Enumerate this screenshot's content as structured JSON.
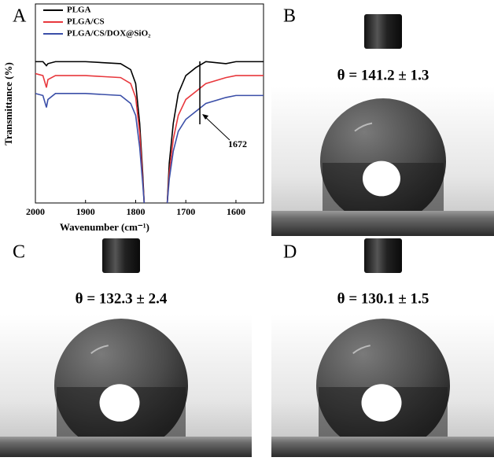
{
  "chart_data": {
    "type": "line",
    "x_label": "Wavenumber (cm⁻¹)",
    "y_label": "Transmittance (%)",
    "xlim": [
      2000,
      1545
    ],
    "xticks": [
      2000,
      1900,
      1800,
      1700,
      1600
    ],
    "ylim": [
      0,
      100
    ],
    "annotation": 1672,
    "x": [
      2000,
      1985,
      1978,
      1975,
      1960,
      1900,
      1830,
      1810,
      1800,
      1792,
      1786,
      1783,
      1760,
      1737,
      1733,
      1725,
      1715,
      1700,
      1680,
      1660,
      1620,
      1600,
      1545
    ],
    "series": [
      {
        "name": "PLGA",
        "color": "#000000",
        "values": [
          71,
          71,
          69,
          70,
          71,
          71,
          70,
          67,
          60,
          40,
          15,
          0,
          null,
          0,
          20,
          40,
          55,
          64,
          68,
          71,
          70,
          71,
          71
        ]
      },
      {
        "name": "PLGA/CS",
        "color": "#e8383d",
        "values": [
          65,
          64,
          58,
          62,
          64,
          64,
          63,
          60,
          53,
          35,
          12,
          0,
          null,
          0,
          15,
          32,
          44,
          52,
          56,
          60,
          63,
          64,
          64
        ]
      },
      {
        "name": "PLGA/CS/DOX@SiO₂",
        "color": "#3b4fa8",
        "values": [
          55,
          54,
          48,
          52,
          55,
          55,
          54,
          50,
          44,
          28,
          10,
          0,
          null,
          0,
          12,
          26,
          36,
          42,
          46,
          50,
          53,
          54,
          54
        ]
      }
    ]
  },
  "panels": [
    {
      "label": "A"
    },
    {
      "label": "B",
      "text": "θ = 141.2 ± 1.3"
    },
    {
      "label": "C",
      "text": "θ = 132.3 ± 2.4"
    },
    {
      "label": "D",
      "text": "θ = 130.1 ± 1.5"
    }
  ]
}
